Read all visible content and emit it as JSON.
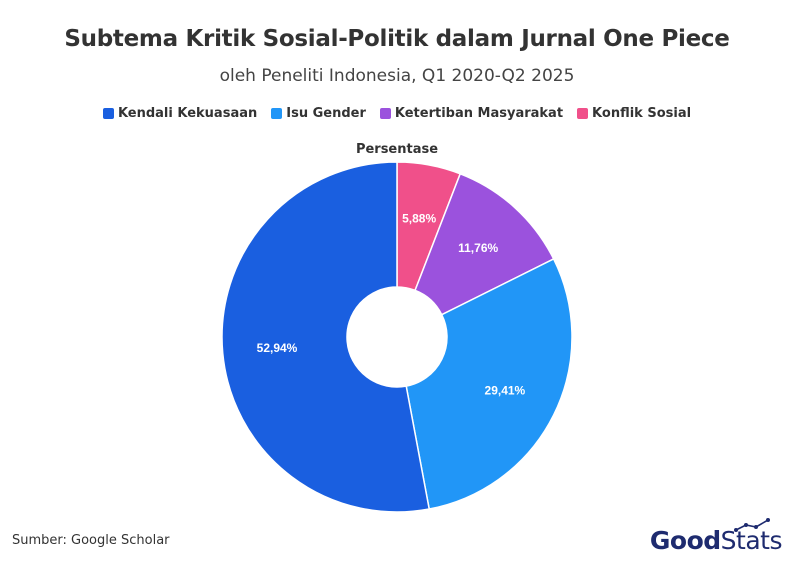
{
  "header": {
    "title": "Subtema Kritik Sosial-Politik dalam Jurnal One Piece",
    "subtitle": "oleh Peneliti Indonesia, Q1 2020-Q2 2025"
  },
  "chart_data": {
    "type": "pie",
    "variant": "donut",
    "series_name": "Persentase",
    "legend_position": "top",
    "slices": [
      {
        "label": "Konflik Sosial",
        "value": 5.88,
        "display": "5,88%",
        "color": "#f0508a"
      },
      {
        "label": "Ketertiban Masyarakat",
        "value": 11.76,
        "display": "11,76%",
        "color": "#9b52dd"
      },
      {
        "label": "Isu Gender",
        "value": 29.41,
        "display": "29,41%",
        "color": "#2196f7"
      },
      {
        "label": "Kendali Kekuasaan",
        "value": 52.94,
        "display": "52,94%",
        "color": "#1a5fe0"
      }
    ],
    "legend_order": [
      "Kendali Kekuasaan",
      "Isu Gender",
      "Ketertiban Masyarakat",
      "Konflik Sosial"
    ]
  },
  "footer": {
    "source": "Sumber: Google Scholar",
    "logo_good": "Good",
    "logo_stats": "Stats",
    "logo_color": "#1e2b6f"
  }
}
